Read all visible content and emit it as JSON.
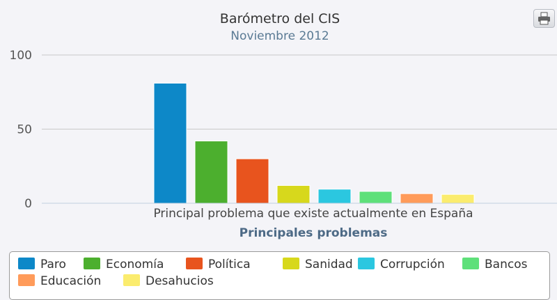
{
  "chart_data": {
    "type": "bar",
    "title": "Barómetro del CIS",
    "subtitle": "Noviembre 2012",
    "xlabel": "Principales problemas",
    "ylabel": "",
    "categories": [
      "Principal problema que existe actualmente en España"
    ],
    "ylim": [
      0,
      100
    ],
    "yticks": [
      0,
      50,
      100
    ],
    "grid": true,
    "legend_position": "bottom",
    "series": [
      {
        "name": "Paro",
        "values": [
          81
        ],
        "color": "#0d88c8"
      },
      {
        "name": "Economía",
        "values": [
          42
        ],
        "color": "#4caf2e"
      },
      {
        "name": "Política",
        "values": [
          30
        ],
        "color": "#e8541e"
      },
      {
        "name": "Sanidad",
        "values": [
          12
        ],
        "color": "#d7d81c"
      },
      {
        "name": "Corrupción",
        "values": [
          9.5
        ],
        "color": "#2bc7e0"
      },
      {
        "name": "Bancos",
        "values": [
          8
        ],
        "color": "#5ee07a"
      },
      {
        "name": "Educación",
        "values": [
          6.5
        ],
        "color": "#ff9b5a"
      },
      {
        "name": "Desahucios",
        "values": [
          6
        ],
        "color": "#fbec6e"
      }
    ]
  },
  "toolbar": {
    "print_icon": "printer-icon"
  }
}
